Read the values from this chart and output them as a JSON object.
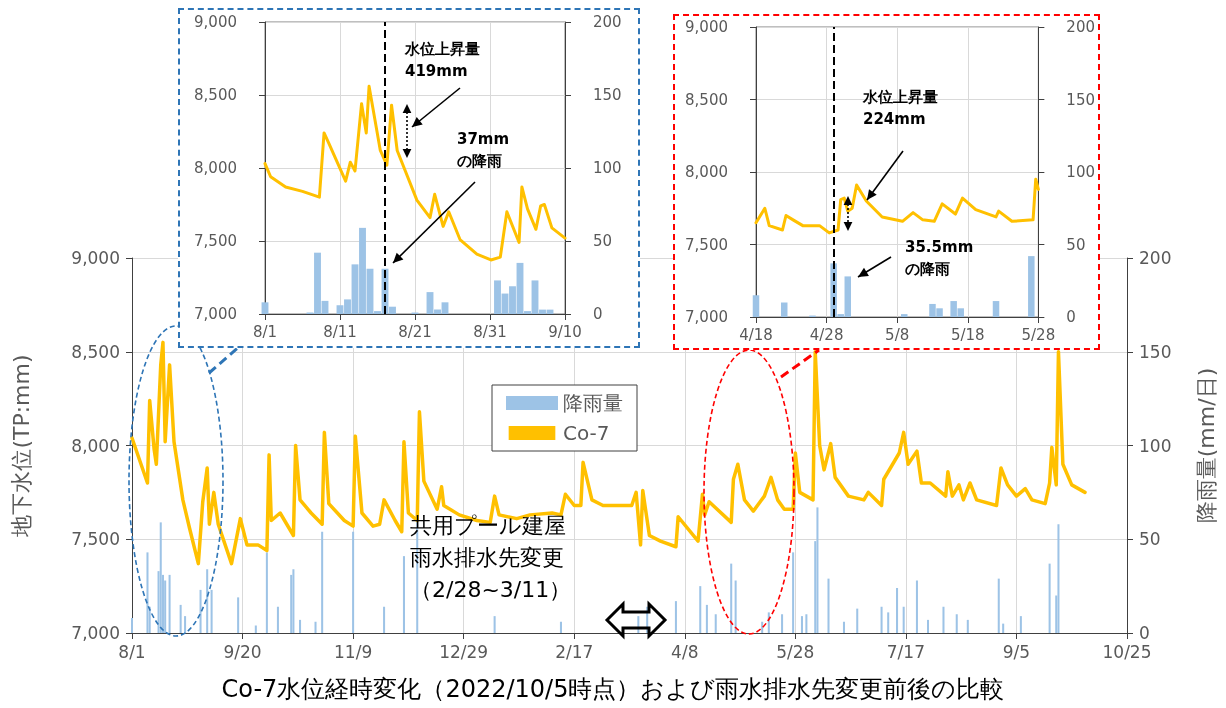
{
  "chart_data": [
    {
      "type": "line",
      "title": "Co-7水位経時変化（2022/10/5時点）および雨水排水先変更前後の比較",
      "ylabel": "地下水位(TP:mm)",
      "y2label": "降雨量(mm/日)",
      "xlim": [
        "2021-08-01",
        "2022-10-25"
      ],
      "xticks": [
        {
          "value": "2021-08-01",
          "label": "8/1"
        },
        {
          "value": "2021-09-20",
          "label": "9/20"
        },
        {
          "value": "2021-11-09",
          "label": "11/9"
        },
        {
          "value": "2021-12-29",
          "label": "12/29"
        },
        {
          "value": "2022-02-17",
          "label": "2/17"
        },
        {
          "value": "2022-04-08",
          "label": "4/8"
        },
        {
          "value": "2022-05-28",
          "label": "5/28"
        },
        {
          "value": "2022-07-17",
          "label": "7/17"
        },
        {
          "value": "2022-09-05",
          "label": "9/5"
        },
        {
          "value": "2022-10-25",
          "label": "10/25"
        }
      ],
      "ylim": [
        7000,
        9000
      ],
      "yticks": [
        {
          "value": 7000,
          "label": "7,000"
        },
        {
          "value": 7500,
          "label": "7,500"
        },
        {
          "value": 8000,
          "label": "8,000"
        },
        {
          "value": 8500,
          "label": "8,500"
        },
        {
          "value": 9000,
          "label": "9,000"
        }
      ],
      "y2lim": [
        0,
        200
      ],
      "y2ticks": [
        0,
        50,
        100,
        150,
        200
      ],
      "grid": true,
      "legend": "top",
      "marker": "none",
      "annotations": [
        "共用プール建屋雨水排水先変更（2/28~3/11）"
      ],
      "series": [
        {
          "name": "降雨量",
          "type": "bar",
          "axis": "y2",
          "color": "#9dc3e6",
          "x": [
            "2021-08-01",
            "2021-08-08",
            "2021-08-09",
            "2021-08-13",
            "2021-08-14",
            "2021-08-15",
            "2021-08-16",
            "2021-08-18",
            "2021-08-23",
            "2021-08-25",
            "2021-09-01",
            "2021-09-04",
            "2021-09-06",
            "2021-09-18",
            "2021-09-26",
            "2021-10-01",
            "2021-10-06",
            "2021-10-12",
            "2021-10-13",
            "2021-10-16",
            "2021-10-23",
            "2021-10-26",
            "2021-11-09",
            "2021-11-23",
            "2021-12-02",
            "2021-12-08",
            "2022-01-12",
            "2022-02-11",
            "2022-03-18",
            "2022-03-22",
            "2022-04-04",
            "2022-04-15",
            "2022-04-18",
            "2022-04-22",
            "2022-04-29",
            "2022-05-01",
            "2022-05-13",
            "2022-05-16",
            "2022-05-22",
            "2022-05-27",
            "2022-05-31",
            "2022-06-02",
            "2022-06-06",
            "2022-06-07",
            "2022-06-12",
            "2022-06-19",
            "2022-06-25",
            "2022-07-06",
            "2022-07-09",
            "2022-07-13",
            "2022-07-16",
            "2022-07-22",
            "2022-07-27",
            "2022-08-03",
            "2022-08-09",
            "2022-08-14",
            "2022-08-28",
            "2022-08-30",
            "2022-09-07",
            "2022-09-20",
            "2022-09-23",
            "2022-09-24"
          ],
          "values": [
            8,
            43,
            14,
            33,
            59,
            31,
            28,
            31,
            15,
            9,
            23,
            34,
            23,
            19,
            4,
            43,
            14,
            31,
            34,
            7,
            6,
            54,
            54,
            14,
            41,
            60,
            9,
            6,
            9,
            14,
            17,
            25,
            15,
            10,
            37,
            28,
            6,
            11,
            10,
            43,
            9,
            10,
            49,
            67,
            29,
            6,
            13,
            14,
            11,
            24,
            14,
            28,
            7,
            14,
            10,
            7,
            29,
            5,
            9,
            37,
            20,
            58
          ]
        },
        {
          "name": "Co-7",
          "color": "#ffc000",
          "x": [
            "2021-08-01",
            "2021-08-08",
            "2021-08-09",
            "2021-08-11",
            "2021-08-12",
            "2021-08-14",
            "2021-08-15",
            "2021-08-16",
            "2021-08-18",
            "2021-08-20",
            "2021-08-24",
            "2021-08-27",
            "2021-08-31",
            "2021-09-02",
            "2021-09-04",
            "2021-09-05",
            "2021-09-07",
            "2021-09-09",
            "2021-09-15",
            "2021-09-19",
            "2021-09-22",
            "2021-09-27",
            "2021-10-01",
            "2021-10-02",
            "2021-10-03",
            "2021-10-07",
            "2021-10-13",
            "2021-10-14",
            "2021-10-16",
            "2021-10-21",
            "2021-10-26",
            "2021-10-27",
            "2021-10-29",
            "2021-11-05",
            "2021-11-09",
            "2021-11-10",
            "2021-11-13",
            "2021-11-18",
            "2021-11-21",
            "2021-11-23",
            "2021-11-28",
            "2021-12-01",
            "2021-12-02",
            "2021-12-04",
            "2021-12-08",
            "2021-12-09",
            "2021-12-11",
            "2021-12-17",
            "2021-12-19",
            "2021-12-20",
            "2021-12-27",
            "2022-01-04",
            "2022-01-10",
            "2022-01-12",
            "2022-01-14",
            "2022-01-22",
            "2022-01-28",
            "2022-02-07",
            "2022-02-11",
            "2022-02-13",
            "2022-02-17",
            "2022-02-20",
            "2022-02-21",
            "2022-02-25",
            "2022-03-02",
            "2022-03-08",
            "2022-03-15",
            "2022-03-17",
            "2022-03-19",
            "2022-03-20",
            "2022-03-23",
            "2022-03-28",
            "2022-04-04",
            "2022-04-05",
            "2022-04-14",
            "2022-04-16",
            "2022-04-17",
            "2022-04-19",
            "2022-04-29",
            "2022-04-30",
            "2022-05-02",
            "2022-05-05",
            "2022-05-09",
            "2022-05-14",
            "2022-05-17",
            "2022-05-20",
            "2022-05-23",
            "2022-05-27",
            "2022-05-28",
            "2022-05-30",
            "2022-06-05",
            "2022-06-06",
            "2022-06-08",
            "2022-06-10",
            "2022-06-13",
            "2022-06-15",
            "2022-06-21",
            "2022-06-28",
            "2022-06-30",
            "2022-07-06",
            "2022-07-07",
            "2022-07-10",
            "2022-07-14",
            "2022-07-16",
            "2022-07-18",
            "2022-07-22",
            "2022-07-24",
            "2022-07-28",
            "2022-08-04",
            "2022-08-05",
            "2022-08-07",
            "2022-08-10",
            "2022-08-12",
            "2022-08-15",
            "2022-08-18",
            "2022-08-27",
            "2022-08-29",
            "2022-09-01",
            "2022-09-05",
            "2022-09-09",
            "2022-09-12",
            "2022-09-18",
            "2022-09-20",
            "2022-09-21",
            "2022-09-23",
            "2022-09-24",
            "2022-09-26",
            "2022-09-30",
            "2022-10-06"
          ],
          "values": [
            8040,
            7800,
            8240,
            7980,
            7900,
            8430,
            8550,
            8020,
            8430,
            8020,
            7710,
            7560,
            7370,
            7700,
            7880,
            7580,
            7750,
            7580,
            7370,
            7610,
            7470,
            7470,
            7440,
            7950,
            7600,
            7640,
            7520,
            8000,
            7710,
            7640,
            7580,
            8070,
            7690,
            7600,
            7570,
            8050,
            7640,
            7570,
            7580,
            7710,
            7600,
            7540,
            8020,
            7640,
            7600,
            8180,
            7810,
            7660,
            7780,
            7680,
            7630,
            7600,
            7590,
            7730,
            7630,
            7610,
            7630,
            7640,
            7630,
            7740,
            7680,
            7680,
            7910,
            7710,
            7680,
            7680,
            7680,
            7750,
            7470,
            7760,
            7520,
            7490,
            7460,
            7620,
            7490,
            7740,
            7630,
            7700,
            7590,
            7820,
            7900,
            7710,
            7650,
            7730,
            7830,
            7710,
            7660,
            7660,
            7960,
            7750,
            7710,
            8500,
            8000,
            7870,
            8010,
            7830,
            7730,
            7710,
            7750,
            7680,
            7820,
            7880,
            7960,
            8070,
            7900,
            7970,
            7800,
            7800,
            7730,
            7860,
            7730,
            7790,
            7710,
            7800,
            7710,
            7680,
            7880,
            7790,
            7730,
            7770,
            7710,
            7690,
            7800,
            7990,
            7790,
            8500,
            7900,
            7790,
            7750
          ]
        }
      ]
    },
    {
      "type": "line",
      "xlim": [
        "--08-01",
        "--09-10"
      ],
      "xticks": [
        {
          "value": "--08-01",
          "label": "8/1"
        },
        {
          "value": "--08-11",
          "label": "8/11"
        },
        {
          "value": "--08-21",
          "label": "8/21"
        },
        {
          "value": "--08-31",
          "label": "8/31"
        },
        {
          "value": "--09-10",
          "label": "9/10"
        }
      ],
      "ylim": [
        7000,
        9000
      ],
      "yticks": [
        {
          "value": 7000,
          "label": "7,000"
        },
        {
          "value": 7500,
          "label": "7,500"
        },
        {
          "value": 8000,
          "label": "8,000"
        },
        {
          "value": 8500,
          "label": "8,500"
        },
        {
          "value": 9000,
          "label": "9,000"
        }
      ],
      "y2lim": [
        0,
        200
      ],
      "y2ticks": [
        0,
        50,
        100,
        150,
        200
      ],
      "grid": true,
      "marker": "none",
      "annotations": [
        "水位上昇量\n419mm",
        "37mm\nの降雨"
      ],
      "ref_lines": [
        {
          "axis": "x",
          "value": "--08-17",
          "color": "#000000",
          "line_style": "dashed"
        }
      ],
      "series": [
        {
          "type": "bar",
          "axis": "y2",
          "color": "#9dc3e6",
          "x": [
            "--08-01",
            "--08-07",
            "--08-08",
            "--08-09",
            "--08-11",
            "--08-12",
            "--08-13",
            "--08-14",
            "--08-15",
            "--08-16",
            "--08-17",
            "--08-18",
            "--08-21",
            "--08-23",
            "--08-24",
            "--08-25",
            "--09-01",
            "--09-02",
            "--09-03",
            "--09-04",
            "--09-05",
            "--09-06",
            "--09-07",
            "--09-08"
          ],
          "values": [
            8,
            1,
            42,
            9,
            6,
            10,
            34,
            59,
            31,
            2,
            31,
            5,
            1,
            15,
            3,
            8,
            23,
            14,
            19,
            35,
            2,
            23,
            3,
            3
          ]
        },
        {
          "color": "#ffc000",
          "x": [
            "--08-01T00:00",
            "--08-01T18:00",
            "--08-03T18:00",
            "--08-06T00:00",
            "--08-08T06:00",
            "--08-08T21:00",
            "--08-09T12:00",
            "--08-11T18:00",
            "--08-12T09:00",
            "--08-13T00:00",
            "--08-13T21:00",
            "--08-14T12:00",
            "--08-14T21:00",
            "--08-16T09:00",
            "--08-17T06:00",
            "--08-17T21:00",
            "--08-18T15:00",
            "--08-21T06:00",
            "--08-23T00:00",
            "--08-23T15:00",
            "--08-24T18:00",
            "--08-25T12:00",
            "--08-27T00:00",
            "--08-29T06:00",
            "--08-31T03:00",
            "--09-01T09:00",
            "--09-02T06:00",
            "--09-03T21:00",
            "--09-04T06:00",
            "--09-05T00:00",
            "--09-06T03:00",
            "--09-06T18:00",
            "--09-07T06:00",
            "--09-08T06:00",
            "--09-10T00:00"
          ],
          "values": [
            8030,
            7940,
            7870,
            7840,
            7800,
            8240,
            8170,
            7910,
            8040,
            7980,
            8440,
            8240,
            8560,
            8120,
            8020,
            8430,
            8120,
            7780,
            7660,
            7820,
            7600,
            7700,
            7510,
            7410,
            7370,
            7390,
            7700,
            7490,
            7870,
            7720,
            7580,
            7740,
            7750,
            7590,
            7520
          ]
        }
      ]
    },
    {
      "type": "line",
      "xlim": [
        "--04-18",
        "--05-28"
      ],
      "xticks": [
        {
          "value": "--04-18",
          "label": "4/18"
        },
        {
          "value": "--04-28",
          "label": "4/28"
        },
        {
          "value": "--05-08",
          "label": "5/8"
        },
        {
          "value": "--05-18",
          "label": "5/18"
        },
        {
          "value": "--05-28",
          "label": "5/28"
        }
      ],
      "ylim": [
        7000,
        9000
      ],
      "yticks": [
        {
          "value": 7000,
          "label": "7,000"
        },
        {
          "value": 7500,
          "label": "7,500"
        },
        {
          "value": 8000,
          "label": "8,000"
        },
        {
          "value": 8500,
          "label": "8,500"
        },
        {
          "value": 9000,
          "label": "9,000"
        }
      ],
      "y2lim": [
        0,
        200
      ],
      "y2ticks": [
        0,
        50,
        100,
        150,
        200
      ],
      "grid": true,
      "marker": "none",
      "annotations": [
        "水位上昇量\n224mm",
        "35.5mm\nの降雨"
      ],
      "ref_lines": [
        {
          "axis": "x",
          "value": "--04-29",
          "color": "#000000",
          "line_style": "dashed"
        }
      ],
      "series": [
        {
          "type": "bar",
          "axis": "y2",
          "color": "#9dc3e6",
          "x": [
            "--04-18",
            "--04-22",
            "--04-26",
            "--04-29",
            "--04-30",
            "--05-01",
            "--05-09",
            "--05-13",
            "--05-14",
            "--05-16",
            "--05-17",
            "--05-22",
            "--05-27"
          ],
          "values": [
            15,
            10,
            1,
            37,
            2,
            28,
            2,
            9,
            6,
            11,
            6,
            11,
            42
          ]
        },
        {
          "color": "#ffc000",
          "x": [
            "--04-18T00:00",
            "--04-19T06:00",
            "--04-19T21:00",
            "--04-21T18:00",
            "--04-22T06:00",
            "--04-23T06:00",
            "--04-24T15:00",
            "--04-27T00:00",
            "--04-28T09:00",
            "--04-29T15:00",
            "--04-30T00:00",
            "--04-30T12:00",
            "--05-01T00:00",
            "--05-01T15:00",
            "--05-02T06:00",
            "--05-03T15:00",
            "--05-05T21:00",
            "--05-08T18:00",
            "--05-10T06:00",
            "--05-11T15:00",
            "--05-13T06:00",
            "--05-14T09:00",
            "--05-16T06:00",
            "--05-17T06:00",
            "--05-19T03:00",
            "--05-22T00:00",
            "--05-22T09:00",
            "--05-24T06:00",
            "--05-27T06:00",
            "--05-27T15:00",
            "--05-28T00:00"
          ],
          "values": [
            7650,
            7750,
            7630,
            7600,
            7700,
            7670,
            7630,
            7630,
            7580,
            7600,
            7810,
            7820,
            7730,
            7750,
            7910,
            7800,
            7690,
            7660,
            7720,
            7670,
            7660,
            7780,
            7710,
            7820,
            7740,
            7690,
            7730,
            7660,
            7670,
            7950,
            7880
          ]
        }
      ]
    }
  ]
}
